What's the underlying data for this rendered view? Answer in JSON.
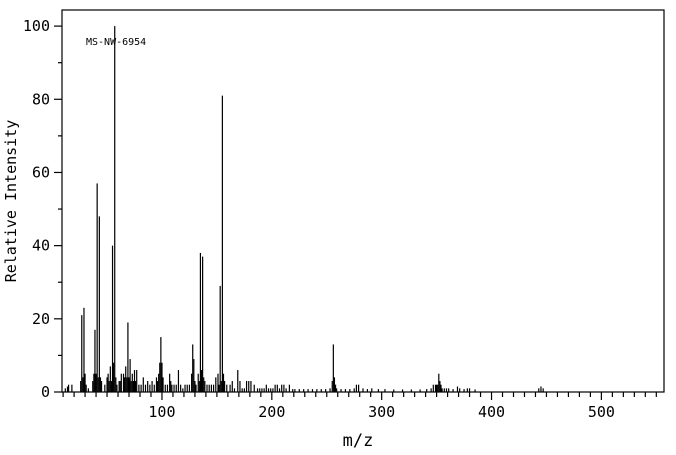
{
  "chart_data": {
    "type": "bar",
    "subtype": "mass-spectrum-stick-plot",
    "annotation": "MS-NW-6954",
    "xlabel": "m/z",
    "ylabel": "Relative Intensity",
    "xlim": [
      9,
      557
    ],
    "ylim": [
      0,
      104.4
    ],
    "grid": false,
    "legend": "none",
    "x_major_ticks": [
      100,
      200,
      300,
      400,
      500
    ],
    "x_minor_step": 10,
    "y_major_ticks": [
      0,
      20,
      40,
      60,
      80,
      100
    ],
    "y_minor_step": 10,
    "base_peak": {
      "mz": 57,
      "intensity": 100
    },
    "notable_peaks": [
      {
        "mz": 41,
        "intensity": 57
      },
      {
        "mz": 43,
        "intensity": 48
      },
      {
        "mz": 55,
        "intensity": 40
      },
      {
        "mz": 57,
        "intensity": 100
      },
      {
        "mz": 135,
        "intensity": 38
      },
      {
        "mz": 137,
        "intensity": 37
      },
      {
        "mz": 153,
        "intensity": 29
      },
      {
        "mz": 155,
        "intensity": 81
      },
      {
        "mz": 256,
        "intensity": 13
      },
      {
        "mz": 352,
        "intensity": 5
      }
    ],
    "peaks": [
      [
        12,
        1
      ],
      [
        14,
        1.5
      ],
      [
        15,
        2
      ],
      [
        18,
        2
      ],
      [
        26,
        3
      ],
      [
        27,
        21
      ],
      [
        28,
        4
      ],
      [
        29,
        23
      ],
      [
        30,
        5
      ],
      [
        31,
        2
      ],
      [
        33,
        1
      ],
      [
        37,
        3
      ],
      [
        38,
        5
      ],
      [
        39,
        17
      ],
      [
        40,
        5
      ],
      [
        41,
        57
      ],
      [
        42,
        4
      ],
      [
        43,
        48
      ],
      [
        44,
        4
      ],
      [
        45,
        3
      ],
      [
        48,
        2
      ],
      [
        50,
        4
      ],
      [
        51,
        5
      ],
      [
        52,
        3
      ],
      [
        53,
        7
      ],
      [
        54,
        3
      ],
      [
        55,
        40
      ],
      [
        56,
        8
      ],
      [
        57,
        100
      ],
      [
        58,
        4
      ],
      [
        59,
        2
      ],
      [
        61,
        3
      ],
      [
        62,
        3
      ],
      [
        63,
        5
      ],
      [
        65,
        5
      ],
      [
        66,
        4
      ],
      [
        67,
        7
      ],
      [
        68,
        4
      ],
      [
        69,
        19
      ],
      [
        70,
        4
      ],
      [
        71,
        9
      ],
      [
        72,
        3
      ],
      [
        73,
        5
      ],
      [
        74,
        3
      ],
      [
        75,
        6
      ],
      [
        76,
        3
      ],
      [
        77,
        6
      ],
      [
        79,
        2
      ],
      [
        81,
        2
      ],
      [
        83,
        4
      ],
      [
        85,
        2
      ],
      [
        87,
        3
      ],
      [
        89,
        2
      ],
      [
        91,
        3
      ],
      [
        93,
        2
      ],
      [
        95,
        4
      ],
      [
        96,
        3
      ],
      [
        97,
        5
      ],
      [
        98,
        8
      ],
      [
        99,
        15
      ],
      [
        100,
        8
      ],
      [
        101,
        4
      ],
      [
        103,
        2
      ],
      [
        105,
        2
      ],
      [
        107,
        5
      ],
      [
        108,
        3
      ],
      [
        109,
        2
      ],
      [
        111,
        2
      ],
      [
        113,
        2
      ],
      [
        115,
        6
      ],
      [
        117,
        2
      ],
      [
        119,
        1
      ],
      [
        121,
        2
      ],
      [
        123,
        2
      ],
      [
        125,
        2
      ],
      [
        127,
        5
      ],
      [
        128,
        13
      ],
      [
        129,
        9
      ],
      [
        130,
        3
      ],
      [
        131,
        2
      ],
      [
        133,
        5
      ],
      [
        134,
        3
      ],
      [
        135,
        38
      ],
      [
        136,
        6
      ],
      [
        137,
        37
      ],
      [
        138,
        4
      ],
      [
        139,
        3
      ],
      [
        141,
        2
      ],
      [
        143,
        2
      ],
      [
        145,
        2
      ],
      [
        147,
        2
      ],
      [
        149,
        4
      ],
      [
        151,
        5
      ],
      [
        152,
        2
      ],
      [
        153,
        29
      ],
      [
        154,
        3
      ],
      [
        155,
        81
      ],
      [
        156,
        5
      ],
      [
        157,
        3
      ],
      [
        159,
        2
      ],
      [
        162,
        2
      ],
      [
        164,
        3
      ],
      [
        166,
        1
      ],
      [
        169,
        6
      ],
      [
        171,
        3
      ],
      [
        173,
        1
      ],
      [
        175,
        1
      ],
      [
        177,
        3
      ],
      [
        179,
        3
      ],
      [
        181,
        3
      ],
      [
        184,
        2
      ],
      [
        187,
        1
      ],
      [
        189,
        1
      ],
      [
        191,
        1
      ],
      [
        193,
        1
      ],
      [
        195,
        2
      ],
      [
        197,
        1
      ],
      [
        199,
        1
      ],
      [
        201,
        1
      ],
      [
        203,
        2
      ],
      [
        205,
        2
      ],
      [
        207,
        1
      ],
      [
        209,
        2
      ],
      [
        211,
        2
      ],
      [
        213,
        1
      ],
      [
        216,
        2
      ],
      [
        219,
        0.8
      ],
      [
        221,
        0.8
      ],
      [
        225,
        0.8
      ],
      [
        229,
        0.8
      ],
      [
        233,
        0.8
      ],
      [
        237,
        0.8
      ],
      [
        241,
        0.8
      ],
      [
        245,
        0.8
      ],
      [
        249,
        0.8
      ],
      [
        253,
        1
      ],
      [
        255,
        3
      ],
      [
        256,
        13
      ],
      [
        257,
        4
      ],
      [
        258,
        2
      ],
      [
        259,
        1
      ],
      [
        263,
        0.8
      ],
      [
        267,
        0.8
      ],
      [
        271,
        0.8
      ],
      [
        275,
        1
      ],
      [
        277,
        2
      ],
      [
        279,
        2
      ],
      [
        283,
        1
      ],
      [
        287,
        0.8
      ],
      [
        291,
        1
      ],
      [
        297,
        0.8
      ],
      [
        303,
        0.8
      ],
      [
        311,
        0.7
      ],
      [
        319,
        0.7
      ],
      [
        327,
        0.7
      ],
      [
        335,
        0.7
      ],
      [
        341,
        0.8
      ],
      [
        345,
        1
      ],
      [
        347,
        2
      ],
      [
        349,
        2
      ],
      [
        350,
        2
      ],
      [
        351,
        2
      ],
      [
        352,
        5
      ],
      [
        353,
        3
      ],
      [
        354,
        2
      ],
      [
        355,
        1
      ],
      [
        357,
        1
      ],
      [
        359,
        1
      ],
      [
        361,
        1
      ],
      [
        365,
        0.8
      ],
      [
        369,
        1.5
      ],
      [
        371,
        1
      ],
      [
        375,
        0.8
      ],
      [
        378,
        1
      ],
      [
        380,
        1
      ],
      [
        385,
        0.7
      ],
      [
        443,
        1
      ],
      [
        445,
        1.5
      ],
      [
        447,
        1
      ]
    ]
  },
  "frame": {
    "background": "#ffffff",
    "line_color": "#000000"
  }
}
